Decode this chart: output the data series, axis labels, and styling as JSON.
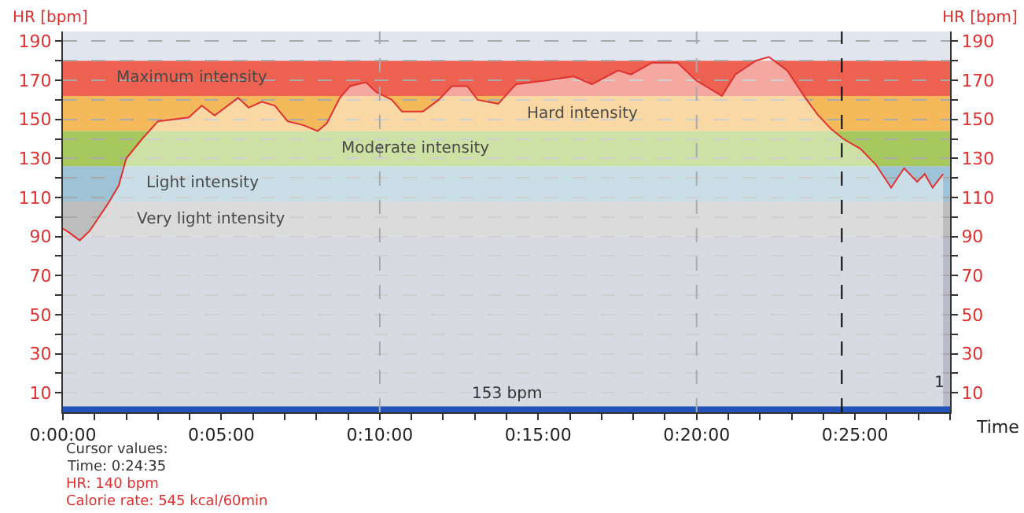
{
  "chart_data": {
    "type": "area",
    "xlabel": "Time",
    "ylabel": "HR [bpm]",
    "y2label": "HR [bpm]",
    "x": [
      0,
      0.2,
      0.53,
      0.85,
      1.1,
      1.43,
      1.76,
      2.0,
      2.5,
      3.0,
      3.48,
      3.97,
      4.38,
      4.79,
      5.53,
      5.86,
      6.27,
      6.69,
      7.09,
      7.59,
      8.04,
      8.33,
      8.74,
      9.06,
      9.56,
      9.89,
      10.38,
      10.7,
      11.36,
      11.86,
      12.27,
      12.76,
      13.09,
      13.74,
      14.24,
      14.32,
      15.3,
      16.12,
      16.7,
      17.52,
      17.93,
      18.59,
      19.4,
      19.98,
      20.8,
      21.22,
      21.87,
      22.28,
      22.86,
      23.43,
      23.84,
      24.25,
      24.63,
      25.16,
      25.65,
      26.14,
      26.55,
      26.96,
      27.2,
      27.45,
      27.78
    ],
    "series": [
      {
        "color": "#e03030",
        "values": [
          94,
          92,
          88,
          93,
          99,
          107,
          116,
          130,
          140,
          149,
          150,
          151,
          157,
          152,
          161,
          156,
          159,
          157,
          149,
          147,
          144,
          148,
          161,
          167,
          169,
          164,
          160,
          154,
          154,
          160,
          167,
          167,
          160,
          158,
          167,
          168,
          170,
          172,
          168,
          175,
          173,
          179,
          179,
          170,
          162,
          173,
          180,
          182,
          175,
          161,
          152,
          145,
          140,
          135,
          127,
          115,
          125,
          118,
          122,
          115,
          122
        ]
      }
    ],
    "xlim": [
      0,
      28.0
    ],
    "xticks": [
      {
        "value": 0,
        "label": "0:00:00"
      },
      {
        "value": 1,
        "label": null
      },
      {
        "value": 2,
        "label": null
      },
      {
        "value": 3,
        "label": null
      },
      {
        "value": 4,
        "label": null
      },
      {
        "value": 5,
        "label": "0:05:00"
      },
      {
        "value": 6,
        "label": null
      },
      {
        "value": 7,
        "label": null
      },
      {
        "value": 8,
        "label": null
      },
      {
        "value": 9,
        "label": null
      },
      {
        "value": 10,
        "label": "0:10:00"
      },
      {
        "value": 11,
        "label": null
      },
      {
        "value": 12,
        "label": null
      },
      {
        "value": 13,
        "label": null
      },
      {
        "value": 14,
        "label": null
      },
      {
        "value": 15,
        "label": "0:15:00"
      },
      {
        "value": 16,
        "label": null
      },
      {
        "value": 17,
        "label": null
      },
      {
        "value": 18,
        "label": null
      },
      {
        "value": 19,
        "label": null
      },
      {
        "value": 20,
        "label": "0:20:00"
      },
      {
        "value": 21,
        "label": null
      },
      {
        "value": 22,
        "label": null
      },
      {
        "value": 23,
        "label": null
      },
      {
        "value": 24,
        "label": null
      },
      {
        "value": 25,
        "label": "0:25:00"
      },
      {
        "value": 26,
        "label": null
      },
      {
        "value": 27,
        "label": null
      },
      {
        "value": 28,
        "label": null
      }
    ],
    "ylim": [
      0,
      195
    ],
    "yticks": [
      10,
      {
        "value": 20,
        "label": null
      },
      30,
      {
        "value": 40,
        "label": null
      },
      50,
      {
        "value": 60,
        "label": null
      },
      70,
      {
        "value": 80,
        "label": null
      },
      90,
      {
        "value": 100,
        "label": null
      },
      110,
      {
        "value": 120,
        "label": null
      },
      130,
      {
        "value": 140,
        "label": null
      },
      150,
      {
        "value": 160,
        "label": null
      },
      170,
      {
        "value": 180,
        "label": null
      },
      190
    ],
    "y2lim": [
      0,
      195
    ],
    "y2ticks": [
      10,
      {
        "value": 20,
        "label": null
      },
      30,
      {
        "value": 40,
        "label": null
      },
      50,
      {
        "value": 60,
        "label": null
      },
      70,
      {
        "value": 80,
        "label": null
      },
      90,
      {
        "value": 100,
        "label": null
      },
      110,
      {
        "value": 120,
        "label": null
      },
      130,
      {
        "value": 140,
        "label": null
      },
      150,
      {
        "value": 160,
        "label": null
      },
      170,
      {
        "value": 180,
        "label": null
      },
      190
    ],
    "grid": "y",
    "bands": [
      {
        "axis": "y",
        "from": 0,
        "to": 90,
        "color": "#b9bcc8"
      },
      {
        "axis": "y",
        "from": 90,
        "to": 108,
        "label": "Very light intensity",
        "color": "#bdbdbd"
      },
      {
        "axis": "y",
        "from": 108,
        "to": 126,
        "label": "Light intensity",
        "color": "#9ec3d6"
      },
      {
        "axis": "y",
        "from": 126,
        "to": 144,
        "label": "Moderate intensity",
        "color": "#a6c85c"
      },
      {
        "axis": "y",
        "from": 144,
        "to": 162,
        "label": "Hard intensity",
        "color": "#f4b95a"
      },
      {
        "axis": "y",
        "from": 162,
        "to": 180,
        "label": "Maximum intensity",
        "color": "#ec6150"
      },
      {
        "axis": "y",
        "from": 0,
        "to": 3,
        "label": "153 bpm",
        "color": "#2352b8"
      }
    ],
    "ref_lines": [
      {
        "axis": "x",
        "value": 10,
        "color": "#aaaaaa",
        "line_style": "dashed"
      },
      {
        "axis": "x",
        "value": 20,
        "color": "#aaaaaa",
        "line_style": "dashed"
      },
      {
        "axis": "x",
        "value": 24.583,
        "color": "#000000",
        "line_style": "dashed"
      }
    ],
    "annotations": [
      {
        "text": "1",
        "x": 27.9,
        "y": 15
      },
      "Cursor values:",
      "Time: 0:24:35",
      "HR: 140 bpm",
      "Calorie rate: 545 kcal/60min"
    ]
  }
}
